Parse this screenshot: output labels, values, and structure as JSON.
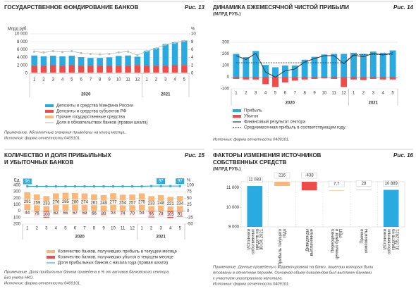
{
  "chart_data": [
    {
      "type": "bar",
      "title": [
        "ГОСУДАРСТВЕННОЕ ФОНДИРОВАНИЕ БАНКОВ"
      ],
      "figure": "Рис. 13",
      "ylabel": "Млрд руб.",
      "y2label": "%",
      "categories": [
        "1",
        "2",
        "3",
        "4",
        "5",
        "6",
        "7",
        "8",
        "9",
        "10",
        "11",
        "12",
        "1",
        "2",
        "3",
        "4",
        "5"
      ],
      "groups": [
        "2020",
        "2021"
      ],
      "ylim": [
        0,
        10000
      ],
      "yticks": [
        0,
        {
          "value": 2000,
          "label": "2 000"
        },
        {
          "value": 4000,
          "label": "4 000"
        },
        {
          "value": 6000,
          "label": "6 000"
        },
        {
          "value": 8000,
          "label": "8 000"
        },
        {
          "value": 10000,
          "label": "10 000"
        }
      ],
      "y2lim": [
        0,
        10
      ],
      "y2ticks": [
        0,
        2,
        4,
        6,
        8,
        10
      ],
      "grid": true,
      "series": [
        {
          "name": "Депозиты и средства Минфина России",
          "color": "#29abe2",
          "values": [
            2500,
            2300,
            2400,
            2300,
            2400,
            2100,
            1900,
            1900,
            2100,
            2400,
            2500,
            2100,
            3700,
            4400,
            5400,
            5800,
            6200
          ]
        },
        {
          "name": "Депозиты и средства субъектов РФ",
          "color": "#ef4b4b",
          "values": [
            1800,
            1800,
            1850,
            1800,
            1850,
            1800,
            1800,
            1800,
            1750,
            1800,
            1800,
            1900,
            1800,
            1800,
            1800,
            1850,
            1900
          ]
        },
        {
          "name": "Прочие государственные средства",
          "color": "#f7b97b",
          "values": [
            200,
            200,
            200,
            200,
            200,
            200,
            200,
            200,
            200,
            200,
            200,
            200,
            200,
            200,
            200,
            200,
            200
          ]
        },
        {
          "name": "Доля в обязательствах банков (правая шкала)",
          "color": "#b8c4b8",
          "type": "line",
          "axis": "y2",
          "marker": "circle",
          "values": [
            5.5,
            5.3,
            5.6,
            5.4,
            5.6,
            5.1,
            4.9,
            4.8,
            4.9,
            5.3,
            5.5,
            4.6,
            5.6,
            6.3,
            7.3,
            7.7,
            8.2
          ]
        }
      ],
      "notes": [
        "Примечание. Абсолютные значения приведены на конец месяца.",
        "Источник: форма отчетности 0409101."
      ]
    },
    {
      "type": "bar",
      "title": [
        "ДИНАМИКА ЕЖЕМЕСЯЧНОЙ ЧИСТОЙ ПРИБЫЛИ"
      ],
      "subtitle": "(МЛРД РУБ.)",
      "figure": "Рис. 14",
      "categories": [
        "1",
        "2",
        "3",
        "4",
        "5",
        "6",
        "7",
        "8",
        "9",
        "10",
        "11",
        "12",
        "1",
        "2",
        "3",
        "4",
        "5"
      ],
      "groups": [
        "2020",
        "2021"
      ],
      "ylim": [
        -100,
        300
      ],
      "yticks": [
        -100,
        0,
        100,
        200,
        300
      ],
      "grid": true,
      "series": [
        {
          "name": "Прибыль",
          "color": "#29abe2",
          "values": [
            200,
            172,
            225,
            105,
            85,
            100,
            100,
            150,
            175,
            195,
            200,
            200,
            210,
            200,
            220,
            210,
            230
          ]
        },
        {
          "name": "Убыток",
          "color": "#ef4b4b",
          "values": [
            -15,
            -20,
            -20,
            -60,
            -85,
            -45,
            -30,
            -20,
            -15,
            -10,
            -15,
            -85,
            -20,
            -25,
            -15,
            -20,
            -20
          ]
        },
        {
          "name": "Финансовый результат сектора",
          "color": "#333333",
          "type": "line",
          "values": [
            185,
            152,
            205,
            45,
            0,
            55,
            70,
            130,
            160,
            185,
            185,
            115,
            190,
            175,
            205,
            190,
            210
          ]
        },
        {
          "name": "Среднемесячная прибыль в соответствующем году",
          "color": "#333333",
          "type": "line",
          "dashed": true,
          "values": [
            124,
            124,
            124,
            124,
            124,
            124,
            124,
            124,
            124,
            124,
            124,
            124,
            194,
            194,
            194,
            194,
            194
          ]
        }
      ],
      "notes": [
        "Источник: форма отчетности 0409101."
      ]
    },
    {
      "type": "bar",
      "title": [
        "КОЛИЧЕСТВО И ДОЛЯ ПРИБЫЛЬНЫХ",
        "И УБЫТОЧНЫХ БАНКОВ"
      ],
      "figure": "Рис. 15",
      "ylabel": "Ед.",
      "y2label": "%",
      "categories": [
        "1",
        "2",
        "3",
        "4",
        "5",
        "6",
        "7",
        "8",
        "9",
        "10",
        "11",
        "12",
        "1",
        "2",
        "3",
        "4",
        "5"
      ],
      "groups": [
        "2020",
        "2021"
      ],
      "ylim": [
        -200,
        400
      ],
      "yticks": [
        {
          "value": -200,
          "label": "200"
        },
        {
          "value": -100,
          "label": "100"
        },
        0,
        100,
        200,
        300,
        400
      ],
      "y2lim": [
        -50,
        100
      ],
      "y2ticks": [
        -50,
        -25,
        0,
        25,
        50,
        75,
        100
      ],
      "grid": true,
      "series": [
        {
          "name": "Количество банков, получивших прибыль в текущем месяце",
          "color": "#f7b97b",
          "show_values": true,
          "values": [
            291,
            259,
            233,
            276,
            285,
            280,
            274,
            261,
            249,
            277,
            254,
            257,
            275,
            233,
            248,
            221,
            234
          ]
        },
        {
          "name": "Количество банков, получивших убыток в текущем месяце",
          "color": "#ef4b4b",
          "values": [
            -44,
            -76,
            -100,
            -62,
            -55,
            -57,
            -59,
            -66,
            -80,
            -53,
            -74,
            -70,
            -54,
            -96,
            -79,
            -105,
            -91
          ],
          "value_labels": [
            "44",
            "76",
            "100",
            "62",
            "55",
            "57",
            "59",
            "66",
            "80",
            "53",
            "74",
            "70",
            "54",
            "96",
            "79",
            "105",
            "91"
          ]
        },
        {
          "name": "Доля прибыльных банков с начала года (правая шкала)",
          "color": "#29abe2",
          "type": "line",
          "axis": "y2",
          "marker": "square",
          "values": [
            96,
            96,
            96,
            96,
            96,
            96,
            96,
            96,
            96,
            96,
            96,
            96,
            96,
            97,
            97,
            97,
            97
          ],
          "value_labels": [
            "96",
            null,
            null,
            null,
            null,
            null,
            null,
            null,
            null,
            null,
            null,
            null,
            null,
            null,
            "97",
            null,
            "97"
          ]
        }
      ],
      "notes": [
        "Примечание. Доля прибыльных банков приведена в % от активов банковского сектора.",
        "Без учета НКО.",
        "Источник: форма отчетности 0409101."
      ]
    },
    {
      "type": "waterfall",
      "title": [
        "ФАКТОРЫ ИЗМЕНЕНИЯ ИСТОЧНИКОВ",
        "СОБСТВЕННЫХ СРЕДСТВ"
      ],
      "subtitle": "(МЛРД РУБ.)",
      "figure": "Рис. 16",
      "categories": [
        "Источники собственных средств на 30.04.2021",
        "Прибыль текущего года",
        "Дивиденды выплаченные",
        "Переоценка ценных бумаг и РВП",
        "Прочие компоненты",
        "Источники собственных средств на 31.05.2021"
      ],
      "values": [
        11083,
        216,
        -438,
        7.7,
        28,
        10889
      ],
      "value_labels": [
        "11 083",
        "216",
        "-438",
        "7,7",
        "28",
        "10 889"
      ],
      "colors": {
        "total": "#29abe2",
        "up": "#f7b97b",
        "down": "#ef4b4b"
      },
      "ylim": [
        9000,
        11300
      ],
      "yticks": [
        {
          "value": 9000,
          "label": "9 000"
        },
        {
          "value": 10000,
          "label": "10 000"
        },
        {
          "value": 11000,
          "label": "11 000"
        }
      ],
      "notes": [
        "Примечание. Данные приведены с корректировкой на банки, лицензии которых были",
        "отозваны в отчетном периоде. Основной объем дивидендов был выплачен банками",
        "с участием иностранного капитала.",
        "Источник: форма отчетности 0409101."
      ]
    }
  ]
}
